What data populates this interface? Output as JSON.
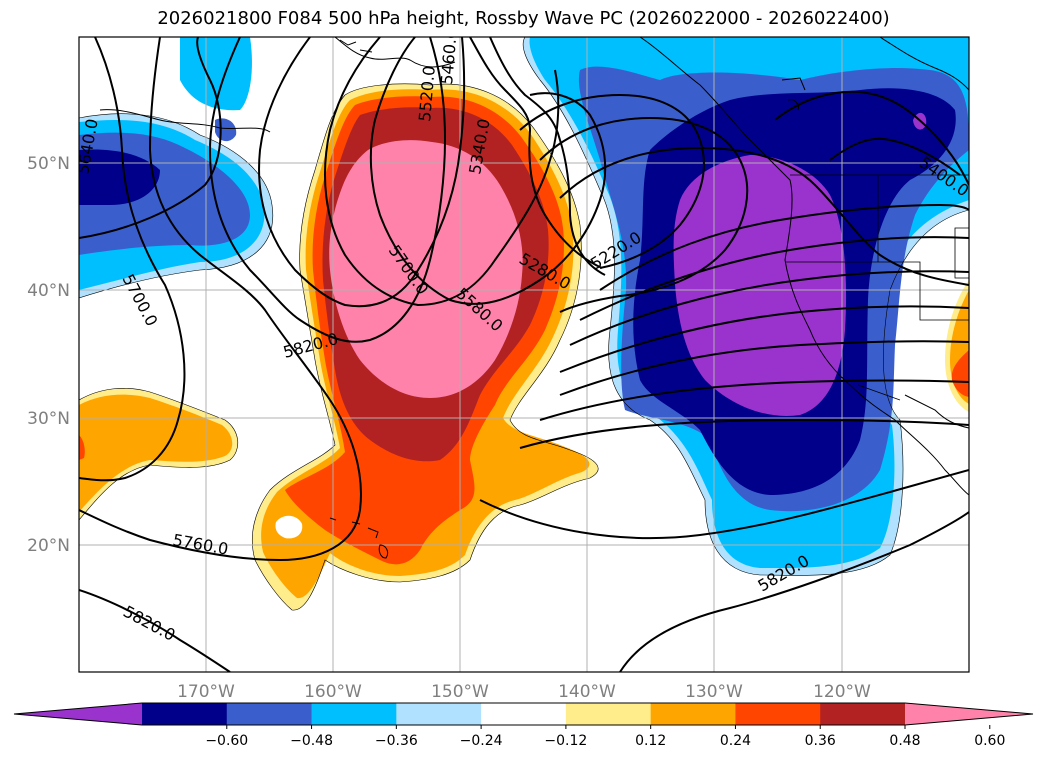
{
  "title": "2026021800 F084 500 hPa height, Rossby Wave PC (2026022000 - 2026022400)",
  "lon_labels": [
    "170°W",
    "160°W",
    "150°W",
    "140°W",
    "130°W",
    "120°W"
  ],
  "lat_labels": [
    "50°N",
    "40°N",
    "30°N",
    "20°N"
  ],
  "colorbar": {
    "ticks": [
      "−0.60",
      "−0.48",
      "−0.36",
      "−0.24",
      "−0.12",
      "0.12",
      "0.24",
      "0.36",
      "0.48",
      "0.60"
    ],
    "colors": [
      "#9a32cd",
      "#00008b",
      "#3a5fcd",
      "#00bfff",
      "#b0e2ff",
      "#ffffff",
      "#ffec8b",
      "#ffa500",
      "#ff4500",
      "#b22222",
      "#ff82ab"
    ]
  },
  "contour_labels": [
    "5640.0",
    "5700.0",
    "5820.0",
    "5760.0",
    "5820.0",
    "5700.0",
    "5580.0",
    "5460.0",
    "5340.0",
    "5280.0",
    "5220.0",
    "5400.0",
    "5820.0",
    "5520.0"
  ]
}
